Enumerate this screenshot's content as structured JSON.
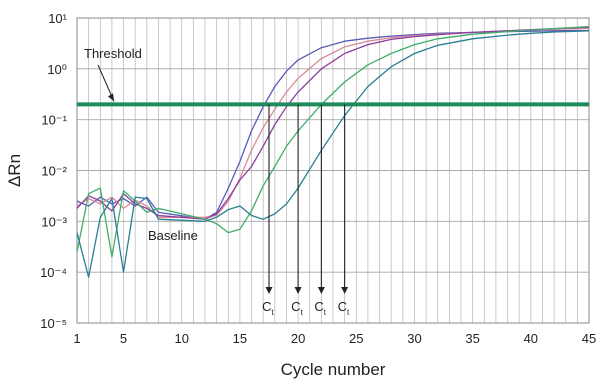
{
  "chart_data": {
    "type": "line",
    "xlabel": "Cycle number",
    "ylabel": "ΔRn",
    "xlim": [
      1,
      45
    ],
    "ylim_log10": [
      -5,
      1
    ],
    "y_scale": "log",
    "x_ticks": [
      1,
      5,
      10,
      15,
      20,
      25,
      30,
      35,
      40,
      45
    ],
    "y_ticks": [
      {
        "label": "10⁻⁵",
        "value": 1e-05
      },
      {
        "label": "10⁻⁴",
        "value": 0.0001
      },
      {
        "label": "10⁻³",
        "value": 0.001
      },
      {
        "label": "10⁻²",
        "value": 0.01
      },
      {
        "label": "10⁻¹",
        "value": 0.1
      },
      {
        "label": "10⁰",
        "value": 1
      },
      {
        "label": "10¹",
        "value": 10
      }
    ],
    "grid": true,
    "threshold": {
      "label": "Threshold",
      "value": 0.2,
      "color": "#1f8a5c"
    },
    "baseline_label": "Baseline",
    "ct_markers": [
      {
        "label": "C",
        "sub": "t",
        "x": 17.5
      },
      {
        "label": "C",
        "sub": "t",
        "x": 20
      },
      {
        "label": "C",
        "sub": "t",
        "x": 22
      },
      {
        "label": "C",
        "sub": "t",
        "x": 24
      }
    ],
    "series": [
      {
        "color": "#5a5ab8",
        "x": [
          1,
          2,
          3,
          4,
          5,
          6,
          7,
          8,
          12,
          13,
          14,
          15,
          16,
          17,
          18,
          19,
          20,
          22,
          24,
          26,
          28,
          30,
          32,
          35,
          38,
          40,
          42,
          45
        ],
        "y": [
          0.0025,
          0.002,
          0.003,
          0.0022,
          0.0028,
          0.002,
          0.003,
          0.0015,
          0.0011,
          0.0015,
          0.0045,
          0.015,
          0.06,
          0.18,
          0.45,
          0.9,
          1.5,
          2.6,
          3.5,
          4.0,
          4.4,
          4.7,
          5.0,
          5.2,
          5.4,
          5.5,
          5.6,
          5.7
        ]
      },
      {
        "color": "#d98a98",
        "x": [
          1,
          2,
          3,
          4,
          5,
          6,
          7,
          8,
          12,
          13,
          14,
          15,
          16,
          17,
          18,
          19,
          20,
          22,
          24,
          26,
          28,
          30,
          32,
          35,
          38,
          40,
          42,
          45
        ],
        "y": [
          0.002,
          0.0028,
          0.0022,
          0.003,
          0.0018,
          0.0026,
          0.002,
          0.0012,
          0.0012,
          0.0013,
          0.0025,
          0.007,
          0.025,
          0.07,
          0.16,
          0.35,
          0.65,
          1.6,
          2.7,
          3.5,
          4.1,
          4.5,
          4.8,
          5.2,
          5.6,
          5.8,
          6.0,
          6.3
        ]
      },
      {
        "color": "#8c3e9e",
        "x": [
          1,
          2,
          3,
          4,
          5,
          6,
          7,
          8,
          12,
          13,
          14,
          15,
          16,
          17,
          18,
          19,
          20,
          22,
          24,
          26,
          28,
          30,
          32,
          35,
          38,
          40,
          42,
          45
        ],
        "y": [
          0.0018,
          0.0032,
          0.0025,
          0.0016,
          0.0035,
          0.0022,
          0.0018,
          0.0013,
          0.0011,
          0.0014,
          0.0028,
          0.0065,
          0.012,
          0.03,
          0.08,
          0.18,
          0.35,
          1.0,
          2.0,
          3.0,
          3.8,
          4.3,
          4.7,
          5.2,
          5.6,
          5.9,
          6.2,
          6.6
        ]
      },
      {
        "color": "#3fae6a",
        "x": [
          1,
          2,
          3,
          4,
          5,
          6,
          7,
          8,
          12,
          13,
          14,
          15,
          16,
          17,
          18,
          19,
          20,
          22,
          24,
          26,
          28,
          30,
          32,
          35,
          38,
          40,
          42,
          45
        ],
        "y": [
          0.00025,
          0.0035,
          0.0045,
          0.0002,
          0.004,
          0.0025,
          0.0015,
          0.0018,
          0.0011,
          0.0009,
          0.0006,
          0.0007,
          0.0016,
          0.005,
          0.012,
          0.03,
          0.06,
          0.2,
          0.55,
          1.2,
          2.0,
          3.0,
          3.9,
          4.8,
          5.4,
          5.8,
          6.2,
          6.8
        ]
      },
      {
        "color": "#2a7f94",
        "x": [
          1,
          2,
          3,
          4,
          5,
          6,
          7,
          8,
          12,
          13,
          14,
          15,
          16,
          17,
          18,
          19,
          20,
          22,
          24,
          26,
          28,
          30,
          32,
          35,
          38,
          40,
          42,
          45
        ],
        "y": [
          0.0006,
          8e-05,
          0.0012,
          0.0028,
          0.0001,
          0.003,
          0.0028,
          0.0011,
          0.001,
          0.0012,
          0.0017,
          0.002,
          0.0013,
          0.0011,
          0.0014,
          0.0022,
          0.0045,
          0.025,
          0.12,
          0.45,
          1.1,
          2.0,
          2.9,
          3.9,
          4.6,
          5.0,
          5.3,
          5.6
        ]
      }
    ]
  }
}
